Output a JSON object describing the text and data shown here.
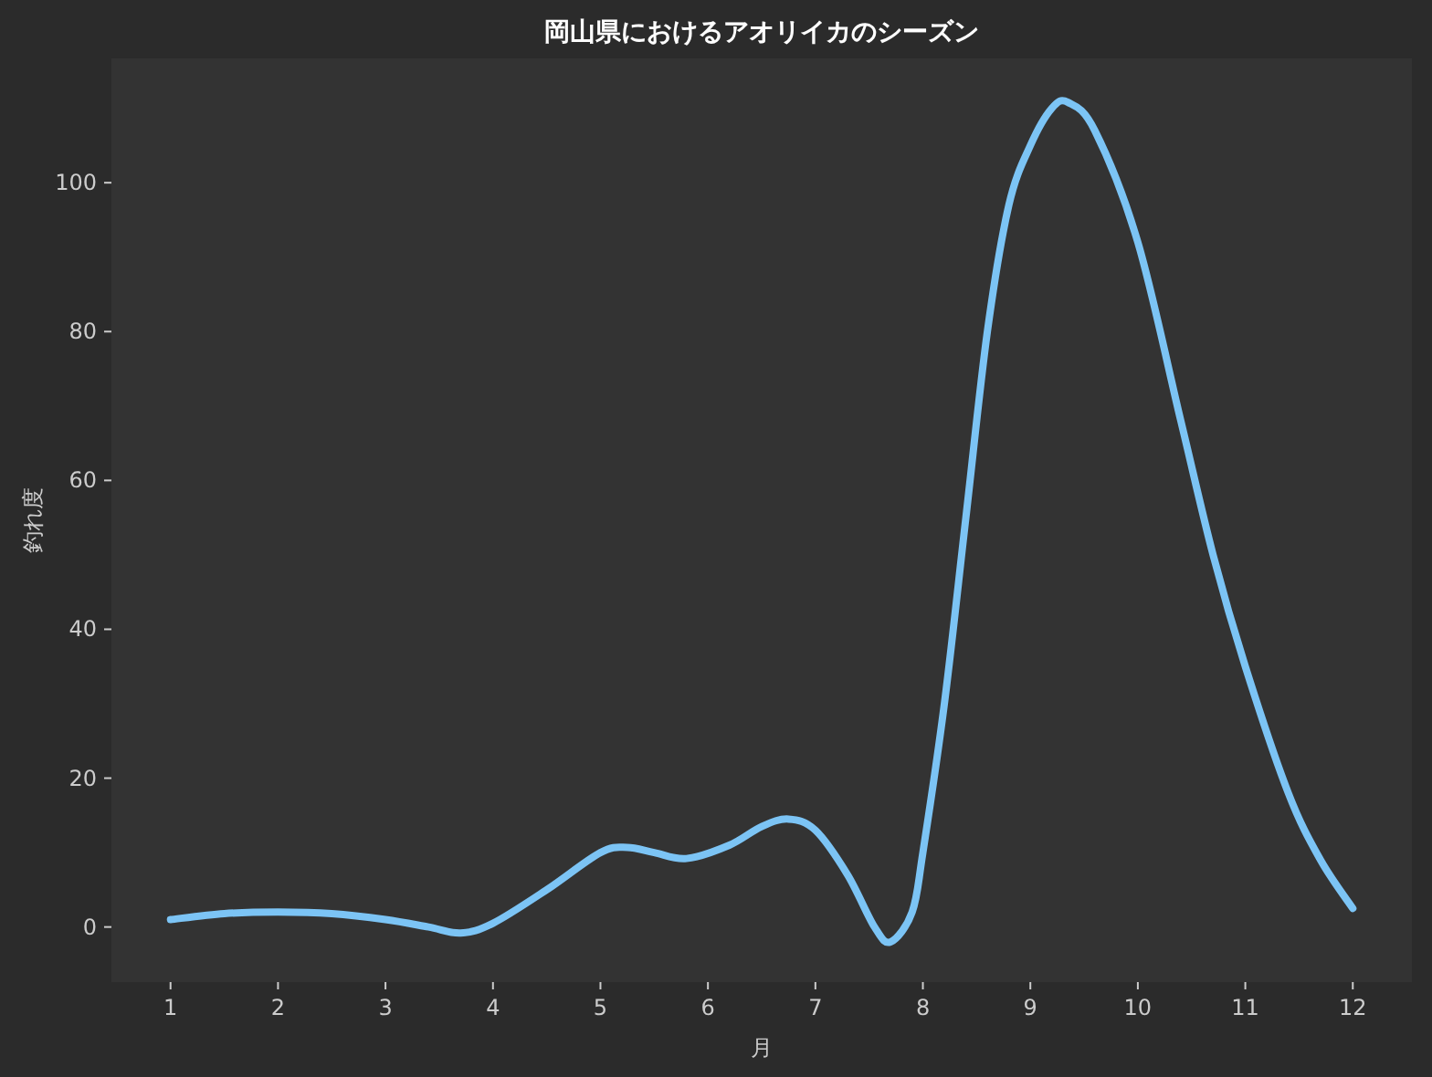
{
  "chart_data": {
    "type": "line",
    "title": "岡山県におけるアオリイカのシーズン",
    "xlabel": "月",
    "ylabel": "釣れ度",
    "xlim": [
      0.45,
      12.55
    ],
    "xticks": [
      1,
      2,
      3,
      4,
      5,
      6,
      7,
      8,
      9,
      10,
      11,
      12
    ],
    "ylim": [
      -7.4,
      116.7
    ],
    "yticks": [
      0,
      20,
      40,
      60,
      80,
      100
    ],
    "grid": false,
    "marker": "none",
    "line_style": "solid",
    "series": [
      {
        "color": "#7cc4f5",
        "x": [
          1,
          1.5,
          2,
          2.5,
          3,
          3.4,
          3.7,
          4,
          4.5,
          5,
          5.25,
          5.5,
          5.8,
          6.2,
          6.5,
          6.75,
          7,
          7.3,
          7.55,
          7.7,
          7.9,
          8,
          8.2,
          8.4,
          8.6,
          8.8,
          9,
          9.2,
          9.35,
          9.6,
          10,
          10.4,
          10.7,
          11,
          11.4,
          11.7,
          12
        ],
        "values": [
          1,
          1.8,
          2,
          1.8,
          1,
          0,
          -0.8,
          0.5,
          5,
          10,
          10.7,
          10,
          9.2,
          11,
          13.5,
          14.5,
          13,
          7,
          0,
          -2,
          2,
          10,
          30,
          55,
          80,
          97,
          105,
          110,
          110.8,
          107,
          92,
          68,
          50,
          35,
          18,
          9,
          2.5
        ]
      }
    ]
  }
}
